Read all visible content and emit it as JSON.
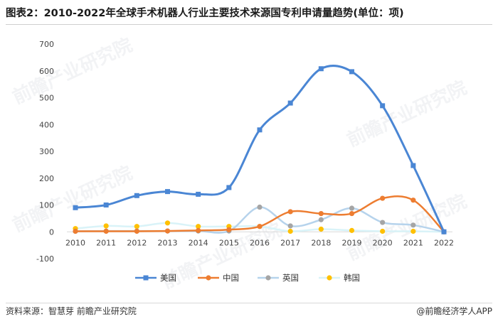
{
  "title": "图表2：2010-2022年全球手术机器人行业主要技术来源国专利申请量趋势(单位：项)",
  "footer": {
    "source": "资料来源：智慧芽 前瞻产业研究院",
    "brand": "@前瞻经济学人APP"
  },
  "watermark": "前瞻产业研究院",
  "colors": {
    "us": "#4a86d4",
    "cn": "#ed7d31",
    "uk": "#a5a5a5",
    "kr": "#ffc000",
    "uk_line": "#b6d3ec",
    "kr_line": "#d9f3f8",
    "axis": "#d9d9d9"
  },
  "chart_data": {
    "type": "line",
    "title": "",
    "xlabel": "",
    "ylabel": "",
    "smooth": true,
    "categories": [
      "2010",
      "2011",
      "2012",
      "2013",
      "2014",
      "2015",
      "2016",
      "2017",
      "2018",
      "2019",
      "2020",
      "2021",
      "2022"
    ],
    "ylim": [
      -100,
      700
    ],
    "yticks": [
      "700",
      "600",
      "500",
      "400",
      "300",
      "200",
      "100",
      "0",
      "-100"
    ],
    "legend_position": "bottom",
    "series": [
      {
        "name": "美国",
        "values": [
          90,
          100,
          135,
          150,
          140,
          165,
          380,
          480,
          608,
          597,
          470,
          247,
          0
        ]
      },
      {
        "name": "中国",
        "values": [
          2,
          2,
          2,
          3,
          5,
          8,
          20,
          75,
          68,
          68,
          125,
          118,
          0
        ]
      },
      {
        "name": "英国",
        "values": [
          2,
          3,
          3,
          3,
          3,
          3,
          92,
          22,
          45,
          88,
          35,
          25,
          0
        ]
      },
      {
        "name": "韩国",
        "values": [
          12,
          22,
          20,
          33,
          20,
          20,
          20,
          2,
          10,
          5,
          2,
          2,
          0
        ]
      }
    ]
  }
}
